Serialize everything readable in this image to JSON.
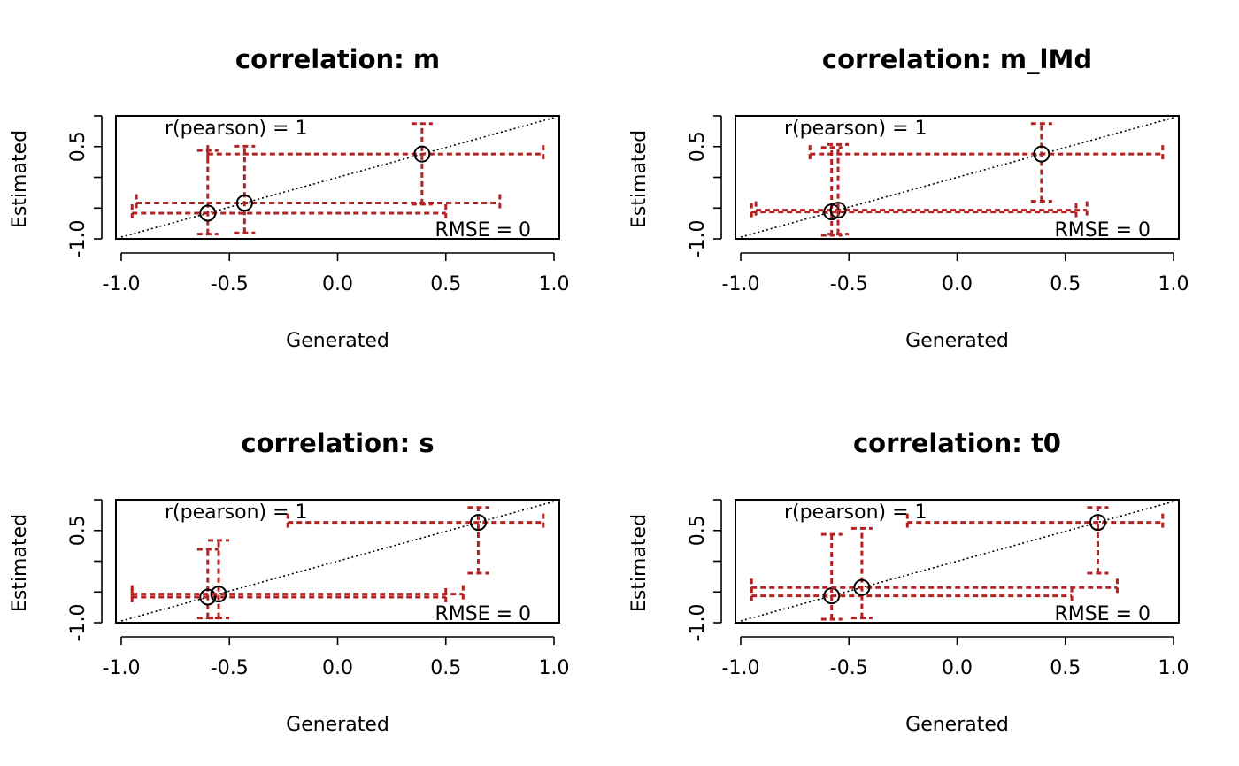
{
  "chart_data": [
    {
      "type": "scatter",
      "title": "correlation: m",
      "xlabel": "Generated",
      "ylabel": "Estimated",
      "xlim": [
        -1.0,
        1.0
      ],
      "ylim": [
        -1.0,
        1.0
      ],
      "x_ticks": [
        "-1.0",
        "-0.5",
        "0.0",
        "0.5",
        "1.0"
      ],
      "y_ticks": [
        "-1.0",
        "0.5"
      ],
      "r_label": "r(pearson) =  1",
      "rmse_label": "RMSE =  0",
      "colors": {
        "ci": "#B22222",
        "points": "#000000",
        "identity": "#000000"
      },
      "points": [
        {
          "x": -0.6,
          "y": -0.6,
          "xlo": -0.95,
          "xhi": 0.5,
          "ylo": -0.95,
          "yhi": 0.45
        },
        {
          "x": -0.43,
          "y": -0.43,
          "xlo": -0.93,
          "xhi": 0.75,
          "ylo": -0.93,
          "yhi": 0.52
        },
        {
          "x": 0.39,
          "y": 0.39,
          "xlo": -0.6,
          "xhi": 0.95,
          "ylo": -0.45,
          "yhi": 0.9
        }
      ]
    },
    {
      "type": "scatter",
      "title": "correlation: m_lMd",
      "xlabel": "Generated",
      "ylabel": "Estimated",
      "xlim": [
        -1.0,
        1.0
      ],
      "ylim": [
        -1.0,
        1.0
      ],
      "x_ticks": [
        "-1.0",
        "-0.5",
        "0.0",
        "0.5",
        "1.0"
      ],
      "y_ticks": [
        "-1.0",
        "0.5"
      ],
      "r_label": "r(pearson) =  1",
      "rmse_label": "RMSE =  0",
      "colors": {
        "ci": "#B22222",
        "points": "#000000",
        "identity": "#000000"
      },
      "points": [
        {
          "x": -0.58,
          "y": -0.58,
          "xlo": -0.95,
          "xhi": 0.55,
          "ylo": -0.97,
          "yhi": 0.5
        },
        {
          "x": -0.55,
          "y": -0.55,
          "xlo": -0.93,
          "xhi": 0.6,
          "ylo": -0.95,
          "yhi": 0.55
        },
        {
          "x": 0.39,
          "y": 0.39,
          "xlo": -0.68,
          "xhi": 0.95,
          "ylo": -0.4,
          "yhi": 0.9
        }
      ]
    },
    {
      "type": "scatter",
      "title": "correlation: s",
      "xlabel": "Generated",
      "ylabel": "Estimated",
      "xlim": [
        -1.0,
        1.0
      ],
      "ylim": [
        -1.0,
        1.0
      ],
      "x_ticks": [
        "-1.0",
        "-0.5",
        "0.0",
        "0.5",
        "1.0"
      ],
      "y_ticks": [
        "-1.0",
        "0.5"
      ],
      "r_label": "r(pearson) =  1",
      "rmse_label": "RMSE =  0",
      "colors": {
        "ci": "#B22222",
        "points": "#000000",
        "identity": "#000000"
      },
      "points": [
        {
          "x": -0.6,
          "y": -0.6,
          "xlo": -0.95,
          "xhi": 0.5,
          "ylo": -0.95,
          "yhi": 0.2
        },
        {
          "x": -0.55,
          "y": -0.55,
          "xlo": -0.95,
          "xhi": 0.58,
          "ylo": -0.95,
          "yhi": 0.35
        },
        {
          "x": 0.65,
          "y": 0.65,
          "xlo": -0.23,
          "xhi": 0.95,
          "ylo": -0.2,
          "yhi": 0.9
        }
      ]
    },
    {
      "type": "scatter",
      "title": "correlation: t0",
      "xlabel": "Generated",
      "ylabel": "Estimated",
      "xlim": [
        -1.0,
        1.0
      ],
      "ylim": [
        -1.0,
        1.0
      ],
      "x_ticks": [
        "-1.0",
        "-0.5",
        "0.0",
        "0.5",
        "1.0"
      ],
      "y_ticks": [
        "-1.0",
        "0.5"
      ],
      "r_label": "r(pearson) =  1",
      "rmse_label": "RMSE =  0",
      "colors": {
        "ci": "#B22222",
        "points": "#000000",
        "identity": "#000000"
      },
      "points": [
        {
          "x": -0.58,
          "y": -0.58,
          "xlo": -0.95,
          "xhi": 0.53,
          "ylo": -0.97,
          "yhi": 0.45
        },
        {
          "x": -0.44,
          "y": -0.44,
          "xlo": -0.95,
          "xhi": 0.74,
          "ylo": -0.95,
          "yhi": 0.55
        },
        {
          "x": 0.65,
          "y": 0.65,
          "xlo": -0.23,
          "xhi": 0.95,
          "ylo": -0.2,
          "yhi": 0.9
        }
      ]
    }
  ]
}
